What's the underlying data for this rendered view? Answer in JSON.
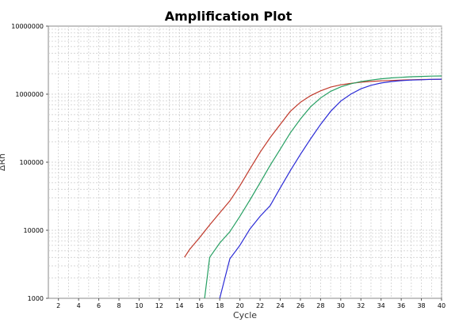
{
  "chart_data": {
    "type": "line",
    "title": "Amplification Plot",
    "xlabel": "Cycle",
    "ylabel": "ΔRn",
    "yscale": "log",
    "xlim": [
      1,
      40
    ],
    "ylim": [
      1000,
      10000000
    ],
    "grid": true,
    "legend": "none",
    "x_ticks": [
      2,
      4,
      6,
      8,
      10,
      12,
      14,
      16,
      18,
      20,
      22,
      24,
      26,
      28,
      30,
      32,
      34,
      36,
      38,
      40
    ],
    "y_ticks": [
      1000,
      10000,
      100000,
      1000000,
      10000000
    ],
    "y_tick_labels": [
      "1000",
      "10000",
      "100000",
      "1000000",
      "10000000"
    ],
    "x": [
      14.5,
      15,
      16,
      17,
      18,
      19,
      20,
      21,
      22,
      23,
      24,
      25,
      26,
      27,
      28,
      29,
      30,
      31,
      32,
      33,
      34,
      35,
      36,
      37,
      38,
      39,
      40
    ],
    "series": [
      {
        "color": "#c0392b",
        "x": [
          14.5,
          15,
          16,
          17,
          18,
          19,
          20,
          21,
          22,
          23,
          24,
          25,
          26,
          27,
          28,
          29,
          30,
          31,
          32,
          33,
          34,
          35,
          36,
          37,
          38,
          39,
          40
        ],
        "values": [
          4000,
          5200,
          7800,
          12000,
          18000,
          27000,
          45000,
          80000,
          140000,
          230000,
          360000,
          560000,
          760000,
          950000,
          1120000,
          1270000,
          1370000,
          1440000,
          1500000,
          1540000,
          1570000,
          1590000,
          1610000,
          1630000,
          1640000,
          1650000,
          1660000
        ]
      },
      {
        "color": "#27a063",
        "x": [
          16.5,
          17,
          18,
          19,
          20,
          21,
          22,
          23,
          24,
          25,
          26,
          27,
          28,
          29,
          30,
          31,
          32,
          33,
          34,
          35,
          36,
          37,
          38,
          39,
          40
        ],
        "values": [
          1000,
          4000,
          6500,
          9500,
          16000,
          28000,
          50000,
          90000,
          155000,
          270000,
          430000,
          650000,
          880000,
          1100000,
          1280000,
          1420000,
          1530000,
          1610000,
          1680000,
          1730000,
          1770000,
          1800000,
          1820000,
          1840000,
          1850000
        ]
      },
      {
        "color": "#2b2bd6",
        "x": [
          18,
          19,
          20,
          21,
          22,
          23,
          24,
          25,
          26,
          27,
          28,
          29,
          30,
          31,
          32,
          33,
          34,
          35,
          36,
          37,
          38,
          39,
          40
        ],
        "values": [
          1000,
          3800,
          6000,
          10500,
          16000,
          23000,
          42000,
          75000,
          130000,
          220000,
          360000,
          560000,
          790000,
          1000000,
          1200000,
          1350000,
          1460000,
          1530000,
          1580000,
          1610000,
          1630000,
          1650000,
          1660000
        ]
      }
    ]
  }
}
